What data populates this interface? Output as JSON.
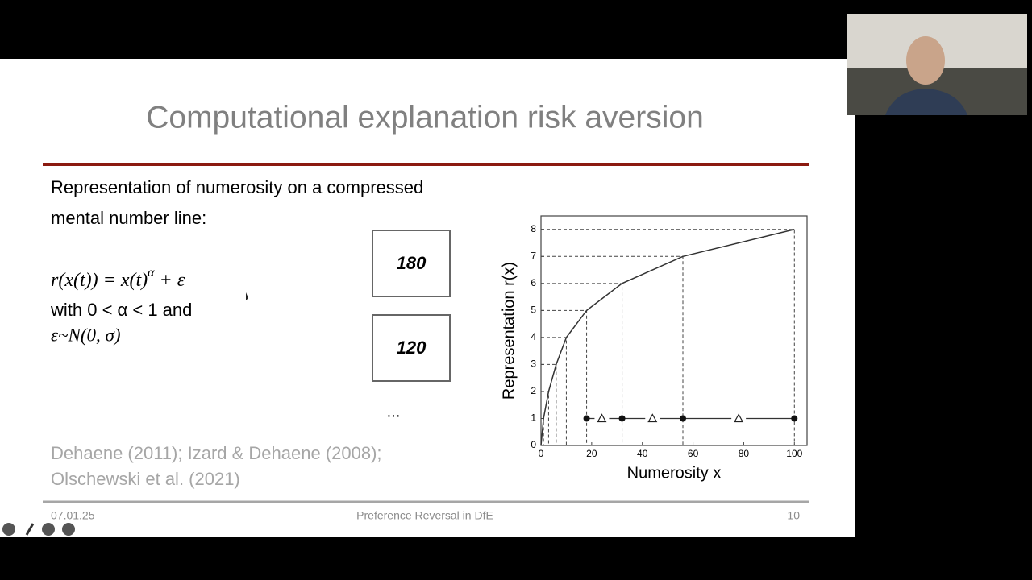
{
  "slide": {
    "title": "Computational explanation risk aversion",
    "body": {
      "line1": "Representation of numerosity on a compressed",
      "line2": "mental number line:"
    },
    "formula": {
      "main": "r(x(t)) = x(t)",
      "exponent": "α",
      "tail": " + ε",
      "line2": "with 0 < α < 1 and",
      "line3": "ε~N(0, σ)"
    },
    "boxes": [
      "180",
      "120"
    ],
    "ellipsis": "...",
    "references": {
      "line1": "Dehaene (2011); Izard & Dehaene (2008);",
      "line2": "Olschewski et al. (2021)"
    },
    "footer": {
      "date": "07.01.25",
      "center": "Preference Reversal in DfE",
      "page": "10"
    },
    "chart": {
      "type": "line",
      "x_label": "Numerosity x",
      "y_label": "Representation r(x)",
      "x": [
        0,
        1,
        3,
        6,
        10,
        18,
        32,
        56,
        100
      ],
      "y": [
        0,
        1,
        2,
        3,
        4,
        5,
        6,
        7,
        8
      ],
      "xlim": [
        0,
        105
      ],
      "ylim": [
        0,
        8.5
      ],
      "xticks": [
        0,
        20,
        40,
        60,
        80,
        100
      ],
      "yticks": [
        0,
        1,
        2,
        3,
        4,
        5,
        6,
        7,
        8
      ],
      "number_line": {
        "y": 1,
        "dots": [
          18,
          32,
          56,
          100
        ],
        "triangles": [
          24,
          44,
          78
        ]
      }
    }
  }
}
